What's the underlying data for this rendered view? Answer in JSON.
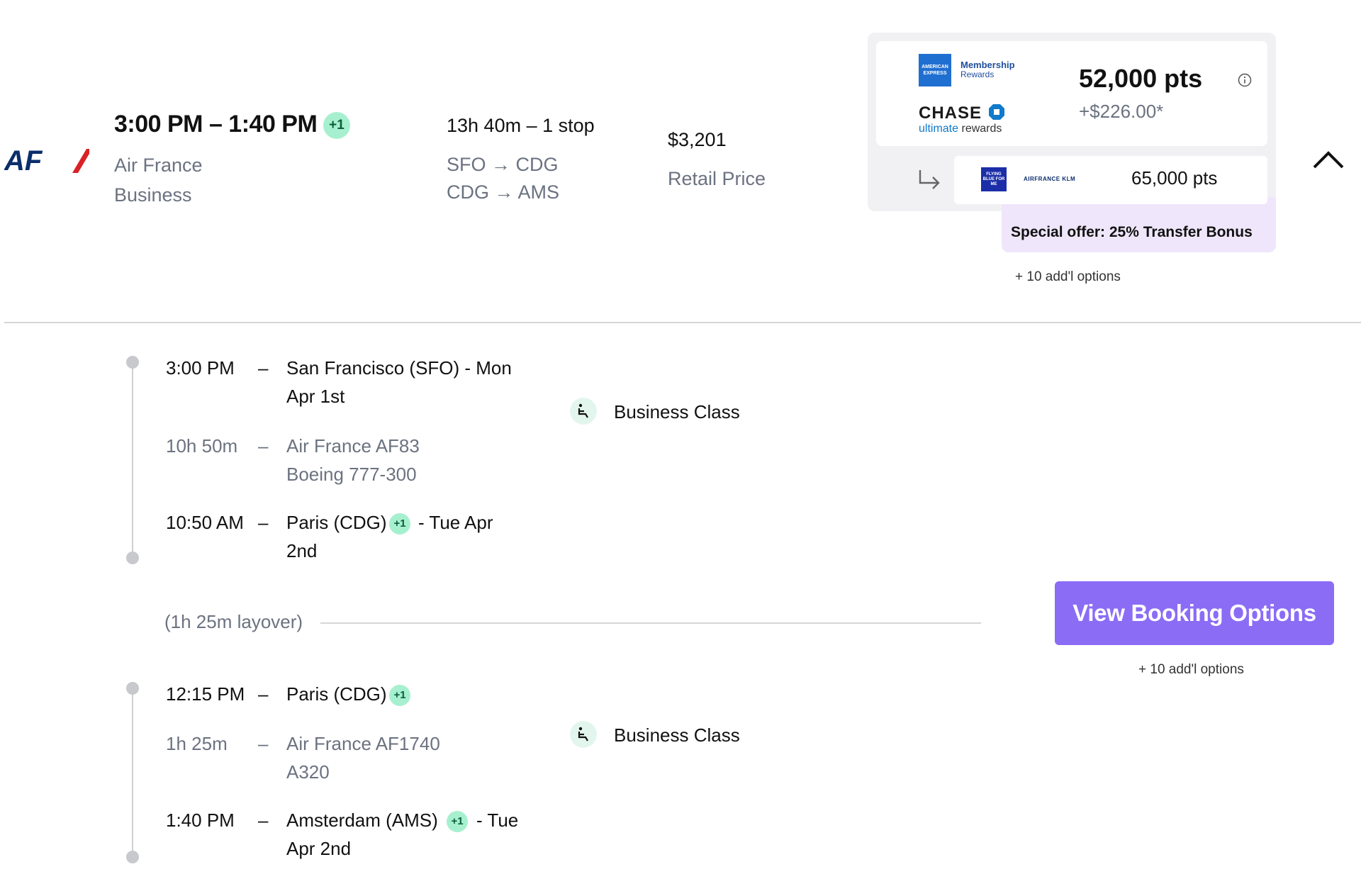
{
  "colors": {
    "accent": "#8b6cf5",
    "badge_bg": "#a7f0cf",
    "offer_bg": "#efe6fb",
    "airline_blue": "#0b2d6b",
    "airline_red": "#d92226"
  },
  "flight": {
    "airline_logo": "AF",
    "times": "3:00 PM – 1:40 PM",
    "plus_day": "+1",
    "airline": "Air France",
    "cabin": "Business",
    "duration": "13h 40m – 1 stop",
    "route1": "SFO → CDG",
    "route2": "CDG → AMS",
    "price": "$3,201",
    "price_label": "Retail Price"
  },
  "points": {
    "amex_logo": "AMERICAN EXPRESS",
    "amex_line1": "Membership",
    "amex_line2": "Rewards",
    "chase_logo": "CHASE",
    "chase_sub1": "ultimate",
    "chase_sub2": "rewards",
    "pts": "52,000 pts",
    "fee": "+$226.00*",
    "info_icon": "info-icon",
    "transfer_arrow": "arrow-turn-icon",
    "fb_logo": "FLYING BLUE FOR ME",
    "afklm_logo": "AIRFRANCE KLM",
    "transfer_pts": "65,000 pts",
    "offer": "Special offer: 25% Transfer Bonus",
    "addl": "+ 10 add'l options"
  },
  "segments": [
    {
      "dep_time": "3:00 PM",
      "dep_place": "San Francisco (SFO) - Mon",
      "dep_place2": "Apr 1st",
      "duration": "10h 50m",
      "flight": "Air France AF83",
      "aircraft": "Boeing 777-300",
      "arr_time": "10:50 AM",
      "arr_place": "Paris (CDG)",
      "arr_badge": "+1",
      "arr_after": "- Tue Apr",
      "arr_place2": "2nd",
      "cabin": "Business Class"
    },
    {
      "dep_time": "12:15 PM",
      "dep_place": "Paris (CDG)",
      "dep_badge": "+1",
      "duration": "1h 25m",
      "flight": "Air France AF1740",
      "aircraft": "A320",
      "arr_time": "1:40 PM",
      "arr_place": "Amsterdam (AMS)",
      "arr_badge": "+1",
      "arr_after": "- Tue",
      "arr_place2": "Apr 2nd",
      "cabin": "Business Class"
    }
  ],
  "layover": "(1h 25m layover)",
  "dash": "–",
  "booking": {
    "button": "View Booking Options",
    "addl": "+ 10 add'l options"
  }
}
